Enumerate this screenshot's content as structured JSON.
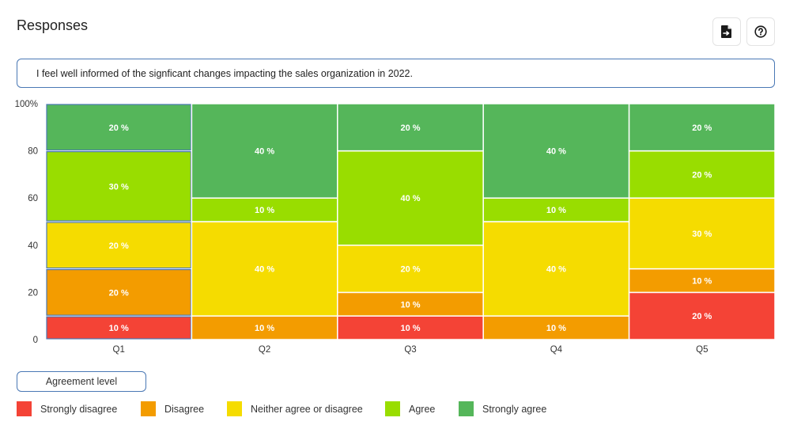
{
  "header": {
    "title": "Responses",
    "export_icon": "file-export-icon",
    "help_icon": "help-circle-icon"
  },
  "question": "I feel well informed of the signficant changes impacting the sales organization in 2022.",
  "legend": {
    "title": "Agreement level",
    "items": [
      {
        "label": "Strongly disagree",
        "color": "#f44336"
      },
      {
        "label": "Disagree",
        "color": "#f39c00"
      },
      {
        "label": "Neither agree or disagree",
        "color": "#f5dc00"
      },
      {
        "label": "Agree",
        "color": "#99dd00"
      },
      {
        "label": "Strongly agree",
        "color": "#55b65a"
      }
    ]
  },
  "chart_data": {
    "type": "bar",
    "stacked": true,
    "categories": [
      "Q1",
      "Q2",
      "Q3",
      "Q4",
      "Q5"
    ],
    "ylim": [
      0,
      100
    ],
    "yticks": [
      "0",
      "20",
      "40",
      "60",
      "80",
      "100%"
    ],
    "value_suffix": " %",
    "series": [
      {
        "name": "Strongly disagree",
        "color": "#f44336",
        "values": [
          10,
          0,
          10,
          0,
          20
        ]
      },
      {
        "name": "Disagree",
        "color": "#f39c00",
        "values": [
          20,
          10,
          10,
          10,
          10
        ]
      },
      {
        "name": "Neither agree or disagree",
        "color": "#f5dc00",
        "values": [
          20,
          40,
          20,
          40,
          30
        ]
      },
      {
        "name": "Agree",
        "color": "#99dd00",
        "values": [
          30,
          10,
          40,
          10,
          20
        ]
      },
      {
        "name": "Strongly agree",
        "color": "#55b65a",
        "values": [
          20,
          40,
          20,
          40,
          20
        ]
      }
    ],
    "highlighted_category": "Q1",
    "highlight_color": "#4a78b5"
  }
}
